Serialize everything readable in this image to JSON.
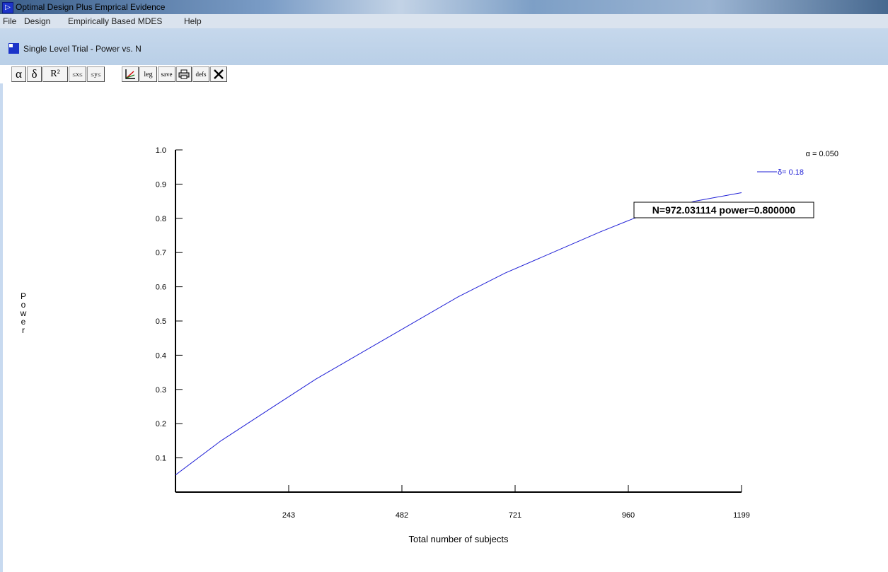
{
  "window": {
    "title": "Optimal Design Plus Emprical Evidence",
    "icon": "app-icon"
  },
  "menu": [
    "File",
    "Design",
    "Empirically Based MDES",
    "Help"
  ],
  "document": {
    "title": "Single Level Trial - Power vs. N",
    "icon": "document-icon"
  },
  "toolbar": {
    "buttons": [
      {
        "name": "alpha",
        "label": "α"
      },
      {
        "name": "delta",
        "label": "δ"
      },
      {
        "name": "r-squared",
        "label": "R²"
      },
      {
        "name": "sample-size-1",
        "label": "≤x≤"
      },
      {
        "name": "sample-size-2",
        "label": "≤y≤"
      },
      {
        "name": "axis",
        "icon": "axis-icon"
      },
      {
        "name": "legend",
        "label": "leg"
      },
      {
        "name": "save",
        "label": "save"
      },
      {
        "name": "print",
        "icon": "printer-icon"
      },
      {
        "name": "defaults",
        "label": "defs"
      },
      {
        "name": "close",
        "icon": "close-icon"
      }
    ]
  },
  "chart_data": {
    "type": "line",
    "title": "",
    "xlabel": "Total number of subjects",
    "ylabel": "Power",
    "xlim": [
      4,
      1199
    ],
    "ylim": [
      0,
      1.0
    ],
    "x_ticks": [
      243,
      482,
      721,
      960,
      1199
    ],
    "y_ticks": [
      0.1,
      0.2,
      0.3,
      0.4,
      0.5,
      0.6,
      0.7,
      0.8,
      0.9,
      1.0
    ],
    "series": [
      {
        "name": "δ= 0.18",
        "color": "#1f1fd6",
        "x": [
          4,
          100,
          200,
          300,
          400,
          500,
          600,
          700,
          800,
          900,
          972,
          1000,
          1100,
          1199
        ],
        "y": [
          0.05,
          0.15,
          0.24,
          0.33,
          0.41,
          0.49,
          0.57,
          0.64,
          0.7,
          0.76,
          0.8,
          0.81,
          0.85,
          0.875
        ]
      }
    ],
    "legend": {
      "position": "top-right",
      "alpha_label": "α = 0.050",
      "series_label": "δ= 0.18"
    },
    "annotation": {
      "text": "N=972.031114 power=0.800000",
      "x": 972.031114,
      "y": 0.8
    }
  }
}
